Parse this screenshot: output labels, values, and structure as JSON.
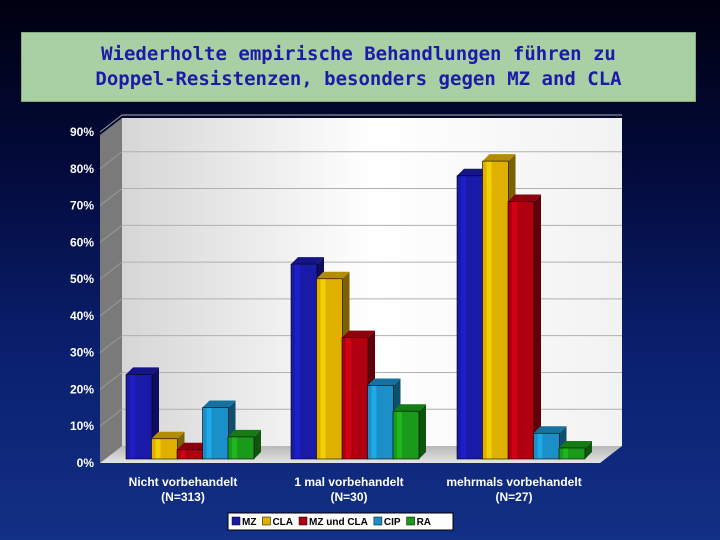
{
  "title": "Wiederholte empirische Behandlungen führen zu\nDoppel-Resistenzen, besonders gegen MZ and CLA",
  "chart_data": {
    "type": "bar",
    "categories": [
      [
        "Nicht vorbehandelt",
        "(N=313)"
      ],
      [
        "1 mal vorbehandelt",
        "(N=30)"
      ],
      [
        "mehrmals vorbehandelt",
        "(N=27)"
      ]
    ],
    "yticks": [
      "0%",
      "10%",
      "20%",
      "30%",
      "40%",
      "50%",
      "60%",
      "70%",
      "80%",
      "90%"
    ],
    "ylim": [
      0,
      90
    ],
    "grid": true,
    "legend_position": "bottom",
    "series": [
      {
        "name": "MZ",
        "color": "#1a1aa8",
        "values": [
          23,
          53,
          77
        ]
      },
      {
        "name": "CLA",
        "color": "#e0b000",
        "values": [
          5.5,
          49,
          81
        ]
      },
      {
        "name": "MZ und CLA",
        "color": "#b00010",
        "values": [
          2.5,
          33,
          70
        ]
      },
      {
        "name": "CIP",
        "color": "#1a8fc8",
        "values": [
          14,
          20,
          7
        ]
      },
      {
        "name": "RA",
        "color": "#1a9a1a",
        "values": [
          6,
          13,
          3
        ]
      }
    ]
  }
}
